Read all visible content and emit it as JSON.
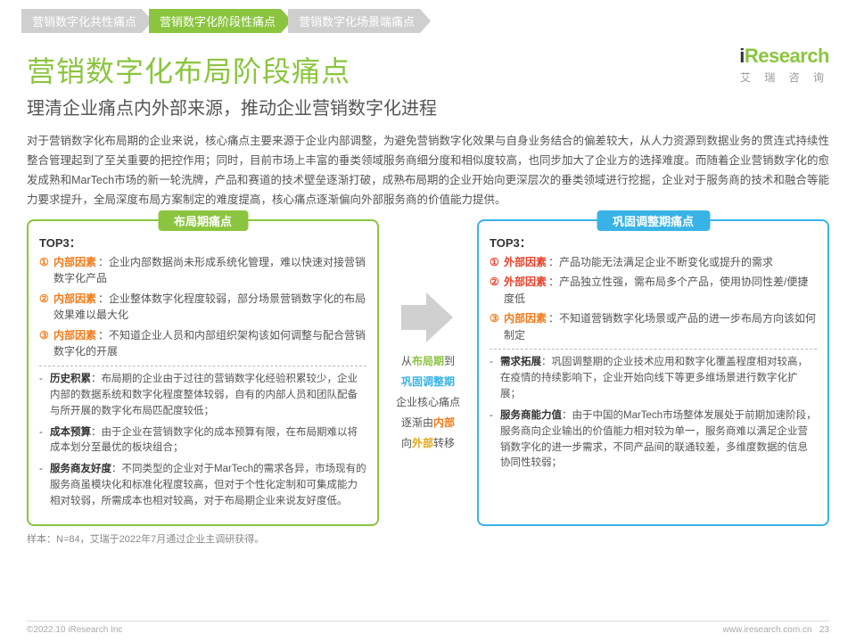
{
  "tabs": [
    {
      "label": "营销数字化共性痛点",
      "state": "inactive"
    },
    {
      "label": "营销数字化阶段性痛点",
      "state": "active"
    },
    {
      "label": "营销数字化场景端痛点",
      "state": "inactive"
    }
  ],
  "logo": {
    "brand": "iResearch",
    "sub": "艾 瑞 咨 询"
  },
  "title": "营销数字化布局阶段痛点",
  "subtitle": "理清企业痛点内外部来源，推动企业营销数字化进程",
  "intro": "对于营销数字化布局期的企业来说，核心痛点主要来源于企业内部调整，为避免营销数字化效果与自身业务结合的偏差较大，从人力资源到数据业务的贯连式持续性整合管理起到了至关重要的把控作用；同时，目前市场上丰富的垂类领域服务商细分度和相似度较高，也同步加大了企业方的选择难度。而随着企业营销数字化的愈发成熟和MarTech市场的新一轮洗牌，产品和赛道的技术壁垒逐渐打破，成熟布局期的企业开始向更深层次的垂类领域进行挖掘，企业对于服务商的技术和融合等能力要求提升，全局深度布局方案制定的难度提高，核心痛点逐渐偏向外部服务商的价值能力提供。",
  "panel_left": {
    "header": "布局期痛点",
    "top3_label": "TOP3：",
    "factors": [
      {
        "num": "①",
        "tag": "内部因素",
        "tag_color": "orange",
        "text": "：企业内部数据尚未形成系统化管理，难以快速对接营销数字化产品"
      },
      {
        "num": "②",
        "tag": "内部因素",
        "tag_color": "orange",
        "text": "：企业整体数字化程度较弱，部分场景营销数字化的布局效果难以最大化"
      },
      {
        "num": "③",
        "tag": "内部因素",
        "tag_color": "orange",
        "text": "：不知道企业人员和内部组织架构该如何调整与配合营销数字化的开展"
      }
    ],
    "details": [
      {
        "label": "历史积累",
        "text": "：布局期的企业由于过往的营销数字化经验积累较少，企业内部的数据系统和数字化程度整体较弱，自有的内部人员和团队配备与所开展的数字化布局匹配度较低；"
      },
      {
        "label": "成本预算",
        "text": "：由于企业在营销数字化的成本预算有限，在布局期难以将成本划分至最优的板块组合；"
      },
      {
        "label": "服务商友好度",
        "text": "：不同类型的企业对于MarTech的需求各异，市场现有的服务商虽模块化和标准化程度较高，但对于个性化定制和可集成能力相对较弱，所需成本也相对较高，对于布局期企业来说友好度低。"
      }
    ]
  },
  "middle": {
    "lines": [
      {
        "pre": "从",
        "g": "布局期",
        "post": "到"
      },
      {
        "b": "巩固调整期"
      },
      {
        "plain": "企业核心痛点"
      },
      {
        "pre": "逐渐由",
        "o": "内部"
      },
      {
        "pre": "向",
        "y": "外部",
        "post": "转移"
      }
    ]
  },
  "panel_right": {
    "header": "巩固调整期痛点",
    "top3_label": "TOP3：",
    "factors": [
      {
        "num": "①",
        "tag": "外部因素",
        "tag_color": "red",
        "text": "：产品功能无法满足企业不断变化或提升的需求"
      },
      {
        "num": "②",
        "tag": "外部因素",
        "tag_color": "red",
        "text": "：产品独立性强，需布局多个产品，使用协同性差/便捷度低"
      },
      {
        "num": "③",
        "tag": "内部因素",
        "tag_color": "orange",
        "text": "：不知道营销数字化场景或产品的进一步布局方向该如何制定"
      }
    ],
    "details": [
      {
        "label": "需求拓展",
        "text": "：巩固调整期的企业技术应用和数字化覆盖程度相对较高，在疫情的持续影响下，企业开始向线下等更多维场景进行数字化扩展；"
      },
      {
        "label": "服务商能力值",
        "text": "：由于中国的MarTech市场整体发展处于前期加速阶段，服务商向企业输出的价值能力相对较为单一，服务商难以满足企业营销数字化的进一步需求，不同产品间的联通较差，多维度数据的信息协同性较弱；"
      }
    ]
  },
  "footnote": "样本：N=84，艾瑞于2022年7月通过企业主调研获得。",
  "footer_left": "©2022.10 iResearch Inc",
  "footer_right_url": "www.iresearch.com.cn",
  "page_num": "23",
  "colors": {
    "green": "#8bc53f",
    "blue": "#39b3e6",
    "orange": "#f27b1a",
    "grey": "#cfcfcf"
  }
}
